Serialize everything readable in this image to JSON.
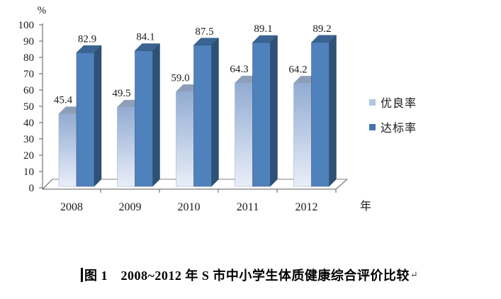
{
  "figure": {
    "caption": {
      "text": "图 1　2008~2012 年 S 市中小学生体质健康综合评价比较",
      "return_mark": "↵"
    }
  },
  "chart_data": {
    "type": "bar",
    "style": "3d-clustered",
    "title": "图 1 2008~2012 年 S 市中小学生体质健康综合评价比较",
    "categories": [
      "2008",
      "2009",
      "2010",
      "2011",
      "2012"
    ],
    "series": [
      {
        "name": "优良率",
        "values": [
          45.4,
          49.5,
          59.0,
          64.3,
          64.2
        ],
        "labels": [
          "45.4",
          "49.5",
          "59.0",
          "64.3",
          "64.2"
        ],
        "colors": {
          "front_top": "#92abd2",
          "front_bottom": "#e9eef8",
          "top_face": "#8d9fb8",
          "side_face": "#a4b8d4",
          "legend": "#b3c6e0"
        }
      },
      {
        "name": "达标率",
        "values": [
          82.9,
          84.1,
          87.5,
          89.1,
          89.2
        ],
        "labels": [
          "82.9",
          "84.1",
          "87.5",
          "89.1",
          "89.2"
        ],
        "colors": {
          "front": "#4f81bd",
          "top_face": "#3a6493",
          "side_face": "#2e5174",
          "legend": "#4374ab"
        }
      }
    ],
    "ylabel": "%",
    "xlabel": "年",
    "ylim": [
      0,
      100
    ],
    "y_ticks": [
      0,
      10,
      20,
      30,
      40,
      50,
      60,
      70,
      80,
      90,
      100
    ],
    "grid": false,
    "legend_position": "right",
    "value_labels": true,
    "axis_color": "#595959",
    "floor_color": "#808080",
    "label_color": "#1a1a1a"
  }
}
